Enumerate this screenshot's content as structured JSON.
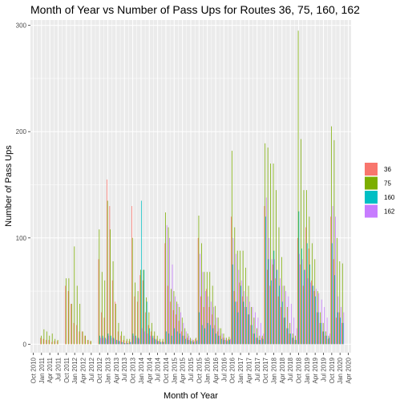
{
  "chart_data": {
    "type": "bar",
    "title": "Month of Year vs Number of Pass Ups for Routes 36, 75, 160, 162",
    "xlabel": "Month of Year",
    "ylabel": "Number of Pass Ups",
    "ylim": [
      -8,
      305
    ],
    "y_ticks": [
      0,
      100,
      200,
      300
    ],
    "grid": true,
    "legend_position": "right",
    "x_ticks": [
      "Oct 2010",
      "Jan 2011",
      "Apr 2011",
      "Jul 2011",
      "Oct 2011",
      "Jan 2012",
      "Apr 2012",
      "Jul 2012",
      "Oct 2012",
      "Jan 2013",
      "Apr 2013",
      "Jul 2013",
      "Oct 2013",
      "Jan 2014",
      "Apr 2014",
      "Jul 2014",
      "Oct 2014",
      "Jan 2015",
      "Apr 2015",
      "Jul 2015",
      "Oct 2015",
      "Jan 2016",
      "Apr 2016",
      "Jul 2016",
      "Oct 2016",
      "Jan 2017",
      "Apr 2017",
      "Jul 2017",
      "Oct 2017",
      "Jan 2018",
      "Apr 2018",
      "Jul 2018",
      "Oct 2018",
      "Jan 2019",
      "Apr 2019",
      "Jul 2019",
      "Oct 2019",
      "Jan 2020",
      "Apr 2020"
    ],
    "categories": [
      "2011-01",
      "2011-02",
      "2011-03",
      "2011-04",
      "2011-05",
      "2011-06",
      "2011-07",
      "2011-08",
      "2011-09",
      "2011-10",
      "2011-11",
      "2011-12",
      "2012-01",
      "2012-02",
      "2012-03",
      "2012-04",
      "2012-05",
      "2012-06",
      "2012-07",
      "2012-08",
      "2012-09",
      "2012-10",
      "2012-11",
      "2012-12",
      "2013-01",
      "2013-02",
      "2013-03",
      "2013-04",
      "2013-05",
      "2013-06",
      "2013-07",
      "2013-08",
      "2013-09",
      "2013-10",
      "2013-11",
      "2013-12",
      "2014-01",
      "2014-02",
      "2014-03",
      "2014-04",
      "2014-05",
      "2014-06",
      "2014-07",
      "2014-08",
      "2014-09",
      "2014-10",
      "2014-11",
      "2014-12",
      "2015-01",
      "2015-02",
      "2015-03",
      "2015-04",
      "2015-05",
      "2015-06",
      "2015-07",
      "2015-08",
      "2015-09",
      "2015-10",
      "2015-11",
      "2015-12",
      "2016-01",
      "2016-02",
      "2016-03",
      "2016-04",
      "2016-05",
      "2016-06",
      "2016-07",
      "2016-08",
      "2016-09",
      "2016-10",
      "2016-11",
      "2016-12",
      "2017-01",
      "2017-02",
      "2017-03",
      "2017-04",
      "2017-05",
      "2017-06",
      "2017-07",
      "2017-08",
      "2017-09",
      "2017-10",
      "2017-11",
      "2017-12",
      "2018-01",
      "2018-02",
      "2018-03",
      "2018-04",
      "2018-05",
      "2018-06",
      "2018-07",
      "2018-08",
      "2018-09",
      "2018-10",
      "2018-11",
      "2018-12",
      "2019-01",
      "2019-02",
      "2019-03",
      "2019-04",
      "2019-05",
      "2019-06",
      "2019-07",
      "2019-08",
      "2019-09",
      "2019-10",
      "2019-11",
      "2019-12",
      "2020-01",
      "2020-02"
    ],
    "series": [
      {
        "name": "36",
        "color": "#F8766D",
        "values": [
          6,
          5,
          4,
          4,
          2,
          3,
          3,
          0,
          0,
          55,
          50,
          38,
          20,
          18,
          12,
          12,
          8,
          4,
          3,
          0,
          0,
          80,
          30,
          25,
          155,
          130,
          60,
          40,
          12,
          8,
          4,
          3,
          3,
          130,
          45,
          40,
          65,
          60,
          30,
          18,
          12,
          8,
          5,
          3,
          3,
          95,
          55,
          40,
          32,
          28,
          22,
          12,
          8,
          6,
          4,
          3,
          5,
          100,
          45,
          35,
          52,
          35,
          28,
          18,
          12,
          8,
          6,
          4,
          5,
          120,
          50,
          40,
          58,
          45,
          35,
          28,
          18,
          10,
          6,
          4,
          6,
          130,
          70,
          55,
          75,
          62,
          45,
          35,
          25,
          15,
          10,
          6,
          4,
          100,
          75,
          55,
          110,
          90,
          60,
          50,
          30,
          20,
          12,
          8,
          5,
          120,
          80,
          25,
          30,
          20
        ]
      },
      {
        "name": "75",
        "color": "#7CAE00",
        "values": [
          8,
          14,
          12,
          8,
          10,
          5,
          4,
          0,
          0,
          62,
          62,
          38,
          92,
          55,
          38,
          12,
          8,
          4,
          3,
          0,
          0,
          108,
          68,
          60,
          135,
          108,
          78,
          38,
          20,
          12,
          8,
          5,
          5,
          100,
          58,
          50,
          70,
          70,
          44,
          30,
          20,
          12,
          8,
          5,
          5,
          124,
          110,
          52,
          50,
          40,
          35,
          25,
          15,
          10,
          6,
          4,
          6,
          121,
          95,
          68,
          68,
          68,
          55,
          36,
          25,
          15,
          10,
          6,
          7,
          182,
          110,
          88,
          88,
          88,
          72,
          55,
          35,
          25,
          15,
          8,
          8,
          189,
          185,
          170,
          170,
          145,
          110,
          82,
          55,
          35,
          20,
          10,
          8,
          295,
          193,
          145,
          145,
          120,
          95,
          80,
          50,
          30,
          20,
          12,
          8,
          205,
          192,
          100,
          78,
          76
        ]
      },
      {
        "name": "160",
        "color": "#00BFC4",
        "values": [
          0,
          0,
          0,
          0,
          0,
          0,
          0,
          0,
          0,
          0,
          0,
          0,
          0,
          0,
          0,
          0,
          0,
          0,
          0,
          0,
          0,
          8,
          8,
          6,
          10,
          8,
          6,
          4,
          3,
          2,
          1,
          1,
          2,
          10,
          8,
          6,
          135,
          70,
          40,
          15,
          8,
          5,
          3,
          2,
          2,
          12,
          10,
          8,
          15,
          12,
          10,
          8,
          5,
          4,
          3,
          2,
          3,
          30,
          18,
          15,
          20,
          18,
          15,
          10,
          8,
          5,
          4,
          3,
          4,
          75,
          40,
          30,
          55,
          40,
          35,
          28,
          18,
          10,
          6,
          4,
          5,
          120,
          80,
          60,
          88,
          70,
          55,
          40,
          25,
          15,
          10,
          6,
          4,
          125,
          90,
          70,
          95,
          75,
          55,
          45,
          30,
          20,
          12,
          8,
          6,
          95,
          65,
          30,
          25,
          20
        ]
      },
      {
        "name": "162",
        "color": "#C77CFF",
        "values": [
          0,
          0,
          0,
          0,
          0,
          0,
          0,
          0,
          0,
          0,
          0,
          0,
          0,
          0,
          0,
          0,
          0,
          0,
          0,
          0,
          0,
          6,
          6,
          5,
          8,
          6,
          5,
          4,
          3,
          2,
          1,
          1,
          2,
          8,
          6,
          5,
          15,
          12,
          10,
          8,
          6,
          4,
          3,
          2,
          2,
          112,
          100,
          75,
          45,
          38,
          30,
          20,
          12,
          8,
          5,
          3,
          4,
          85,
          68,
          50,
          45,
          40,
          35,
          25,
          15,
          10,
          6,
          4,
          5,
          100,
          85,
          70,
          60,
          50,
          45,
          40,
          35,
          30,
          25,
          20,
          10,
          138,
          100,
          80,
          80,
          70,
          62,
          55,
          50,
          45,
          38,
          25,
          15,
          85,
          80,
          70,
          62,
          58,
          55,
          52,
          48,
          42,
          35,
          25,
          10,
          130,
          120,
          45,
          35,
          30
        ]
      }
    ]
  }
}
